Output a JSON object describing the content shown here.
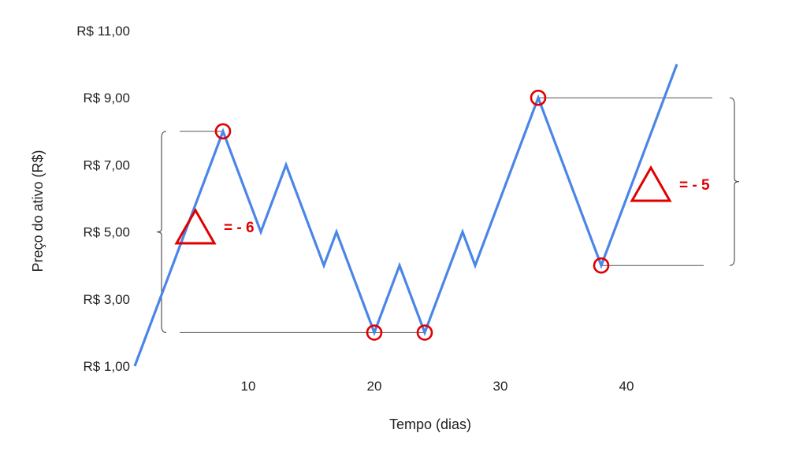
{
  "chart_data": {
    "type": "line",
    "title": "",
    "xlabel": "Tempo (dias)",
    "ylabel": "Preço do ativo (R$)",
    "x_ticks": [
      "10",
      "20",
      "30",
      "40"
    ],
    "y_ticks": [
      "R$ 1,00",
      "R$ 3,00",
      "R$ 5,00",
      "R$ 7,00",
      "R$ 9,00",
      "R$ 11,00"
    ],
    "xlim": [
      1,
      44
    ],
    "ylim": [
      1,
      11
    ],
    "grid": false,
    "series": [
      {
        "color": "#4a86e8",
        "x": [
          1,
          8,
          11,
          13,
          16,
          17,
          20,
          22,
          24,
          27,
          28,
          33,
          38,
          44
        ],
        "y": [
          1,
          8,
          5,
          7,
          4,
          5,
          2,
          4,
          2,
          5,
          4,
          9,
          4,
          10
        ]
      }
    ],
    "highlighted_points": [
      {
        "x": 8,
        "y": 8
      },
      {
        "x": 20,
        "y": 2
      },
      {
        "x": 24,
        "y": 2
      },
      {
        "x": 33,
        "y": 9
      },
      {
        "x": 38,
        "y": 4
      }
    ],
    "annotations": [
      {
        "symbol": "triangle",
        "text": "= - 6",
        "from_y": 8,
        "to_y": 2,
        "color": "#e00000"
      },
      {
        "symbol": "triangle",
        "text": "= - 5",
        "from_y": 9,
        "to_y": 4,
        "color": "#e00000"
      }
    ]
  }
}
